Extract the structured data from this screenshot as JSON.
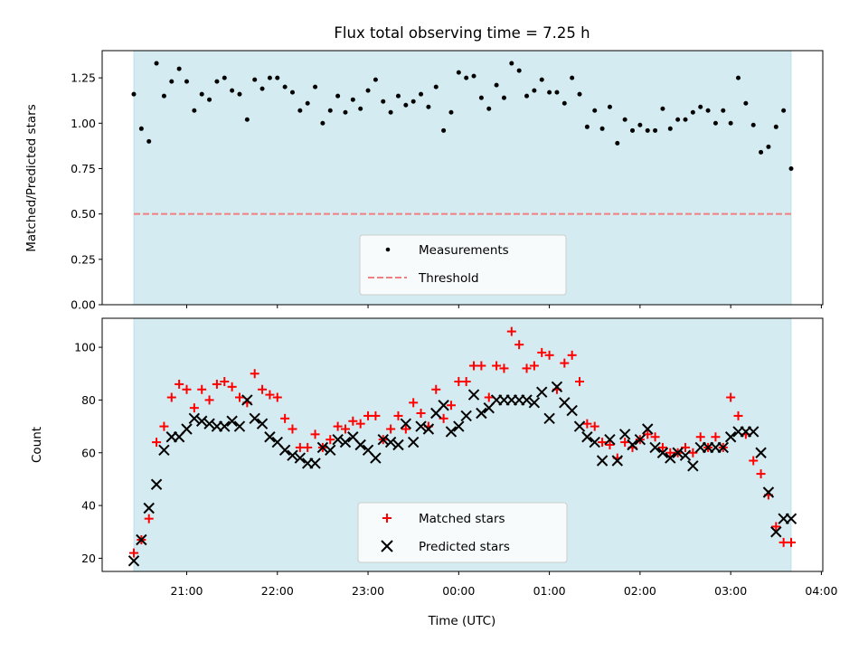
{
  "chart_data": [
    {
      "type": "scatter",
      "title": "Flux total observing time = 7.25 h",
      "xlabel": "",
      "ylabel": "Matched/Predicted stars",
      "ylim": [
        0.0,
        1.4
      ],
      "yticks": [
        "0.00",
        "0.25",
        "0.50",
        "0.75",
        "1.00",
        "1.25"
      ],
      "shaded_color": "#d4ebf1",
      "legend_position": "lower center",
      "series": [
        {
          "name": "Measurements",
          "marker": "dot",
          "color": "#000000",
          "x": [
            "20:25",
            "20:30",
            "20:35",
            "20:40",
            "20:45",
            "20:50",
            "20:55",
            "21:00",
            "21:05",
            "21:10",
            "21:15",
            "21:20",
            "21:25",
            "21:30",
            "21:35",
            "21:40",
            "21:45",
            "21:50",
            "21:55",
            "22:00",
            "22:05",
            "22:10",
            "22:15",
            "22:20",
            "22:25",
            "22:30",
            "22:35",
            "22:40",
            "22:45",
            "22:50",
            "22:55",
            "23:00",
            "23:05",
            "23:10",
            "23:15",
            "23:20",
            "23:25",
            "23:30",
            "23:35",
            "23:40",
            "23:45",
            "23:50",
            "23:55",
            "00:00",
            "00:05",
            "00:10",
            "00:15",
            "00:20",
            "00:25",
            "00:30",
            "00:35",
            "00:40",
            "00:45",
            "00:50",
            "00:55",
            "01:00",
            "01:05",
            "01:10",
            "01:15",
            "01:20",
            "01:25",
            "01:30",
            "01:35",
            "01:40",
            "01:45",
            "01:50",
            "01:55",
            "02:00",
            "02:05",
            "02:10",
            "02:15",
            "02:20",
            "02:25",
            "02:30",
            "02:35",
            "02:40",
            "02:45",
            "02:50",
            "02:55",
            "03:00",
            "03:05",
            "03:10",
            "03:15",
            "03:20",
            "03:25",
            "03:30",
            "03:35",
            "03:40"
          ],
          "y": [
            1.16,
            0.97,
            0.9,
            1.33,
            1.15,
            1.23,
            1.3,
            1.23,
            1.07,
            1.16,
            1.13,
            1.23,
            1.25,
            1.18,
            1.16,
            1.02,
            1.24,
            1.19,
            1.25,
            1.25,
            1.2,
            1.17,
            1.07,
            1.11,
            1.2,
            1.0,
            1.07,
            1.15,
            1.06,
            1.13,
            1.08,
            1.18,
            1.24,
            1.12,
            1.06,
            1.15,
            1.1,
            1.12,
            1.16,
            1.09,
            1.2,
            0.96,
            1.06,
            1.28,
            1.25,
            1.26,
            1.14,
            1.08,
            1.21,
            1.14,
            1.33,
            1.29,
            1.15,
            1.18,
            1.24,
            1.17,
            1.17,
            1.11,
            1.25,
            1.16,
            0.98,
            1.07,
            0.97,
            1.09,
            0.89,
            1.02,
            0.96,
            0.99,
            0.96,
            0.96,
            1.08,
            0.97,
            1.02,
            1.02,
            1.06,
            1.09,
            1.07,
            1.0,
            1.07,
            1.0,
            1.25,
            1.11,
            0.99,
            0.84,
            0.87,
            0.98,
            1.07,
            0.75
          ]
        },
        {
          "name": "Threshold",
          "marker": "dashed-line",
          "color": "#f08080",
          "x": [
            "20:25",
            "03:40"
          ],
          "y": [
            0.5,
            0.5
          ]
        }
      ]
    },
    {
      "type": "scatter",
      "title": "",
      "xlabel": "Time (UTC)",
      "ylabel": "Count",
      "ylim": [
        15,
        111
      ],
      "yticks": [
        "20",
        "40",
        "60",
        "80",
        "100"
      ],
      "xticks": [
        "21:00",
        "22:00",
        "23:00",
        "00:00",
        "01:00",
        "02:00",
        "03:00",
        "04:00"
      ],
      "shaded_color": "#d4ebf1",
      "legend_position": "lower center",
      "series": [
        {
          "name": "Matched stars",
          "marker": "plus",
          "color": "#ff0000",
          "x": [
            "20:25",
            "20:30",
            "20:35",
            "20:40",
            "20:45",
            "20:50",
            "20:55",
            "21:00",
            "21:05",
            "21:10",
            "21:15",
            "21:20",
            "21:25",
            "21:30",
            "21:35",
            "21:40",
            "21:45",
            "21:50",
            "21:55",
            "22:00",
            "22:05",
            "22:10",
            "22:15",
            "22:20",
            "22:25",
            "22:30",
            "22:35",
            "22:40",
            "22:45",
            "22:50",
            "22:55",
            "23:00",
            "23:05",
            "23:10",
            "23:15",
            "23:20",
            "23:25",
            "23:30",
            "23:35",
            "23:40",
            "23:45",
            "23:50",
            "23:55",
            "00:00",
            "00:05",
            "00:10",
            "00:15",
            "00:20",
            "00:25",
            "00:30",
            "00:35",
            "00:40",
            "00:45",
            "00:50",
            "00:55",
            "01:00",
            "01:05",
            "01:10",
            "01:15",
            "01:20",
            "01:25",
            "01:30",
            "01:35",
            "01:40",
            "01:45",
            "01:50",
            "01:55",
            "02:00",
            "02:05",
            "02:10",
            "02:15",
            "02:20",
            "02:25",
            "02:30",
            "02:35",
            "02:40",
            "02:45",
            "02:50",
            "02:55",
            "03:00",
            "03:05",
            "03:10",
            "03:15",
            "03:20",
            "03:25",
            "03:30",
            "03:35",
            "03:40"
          ],
          "y": [
            22,
            27,
            35,
            64,
            70,
            81,
            86,
            84,
            77,
            84,
            80,
            86,
            87,
            85,
            81,
            79,
            90,
            84,
            82,
            81,
            73,
            69,
            62,
            62,
            67,
            62,
            65,
            70,
            69,
            72,
            71,
            74,
            74,
            65,
            69,
            74,
            69,
            79,
            75,
            70,
            84,
            73,
            78,
            87,
            87,
            93,
            93,
            81,
            93,
            92,
            106,
            101,
            92,
            93,
            98,
            97,
            84,
            94,
            97,
            87,
            71,
            70,
            64,
            63,
            58,
            64,
            62,
            65,
            67,
            66,
            62,
            60,
            60,
            62,
            60,
            66,
            62,
            66,
            62,
            81,
            74,
            67,
            57,
            52,
            44,
            32,
            26,
            26
          ]
        },
        {
          "name": "Predicted stars",
          "marker": "x",
          "color": "#000000",
          "x": [
            "20:25",
            "20:30",
            "20:35",
            "20:40",
            "20:45",
            "20:50",
            "20:55",
            "21:00",
            "21:05",
            "21:10",
            "21:15",
            "21:20",
            "21:25",
            "21:30",
            "21:35",
            "21:40",
            "21:45",
            "21:50",
            "21:55",
            "22:00",
            "22:05",
            "22:10",
            "22:15",
            "22:20",
            "22:25",
            "22:30",
            "22:35",
            "22:40",
            "22:45",
            "22:50",
            "22:55",
            "23:00",
            "23:05",
            "23:10",
            "23:15",
            "23:20",
            "23:25",
            "23:30",
            "23:35",
            "23:40",
            "23:45",
            "23:50",
            "23:55",
            "00:00",
            "00:05",
            "00:10",
            "00:15",
            "00:20",
            "00:25",
            "00:30",
            "00:35",
            "00:40",
            "00:45",
            "00:50",
            "00:55",
            "01:00",
            "01:05",
            "01:10",
            "01:15",
            "01:20",
            "01:25",
            "01:30",
            "01:35",
            "01:40",
            "01:45",
            "01:50",
            "01:55",
            "02:00",
            "02:05",
            "02:10",
            "02:15",
            "02:20",
            "02:25",
            "02:30",
            "02:35",
            "02:40",
            "02:45",
            "02:50",
            "02:55",
            "03:00",
            "03:05",
            "03:10",
            "03:15",
            "03:20",
            "03:25",
            "03:30",
            "03:35",
            "03:40"
          ],
          "y": [
            19,
            27,
            39,
            48,
            61,
            66,
            66,
            69,
            73,
            72,
            71,
            70,
            70,
            72,
            70,
            80,
            73,
            71,
            66,
            64,
            61,
            59,
            58,
            56,
            56,
            62,
            61,
            65,
            64,
            66,
            63,
            61,
            58,
            65,
            64,
            63,
            71,
            64,
            70,
            69,
            75,
            78,
            68,
            70,
            74,
            82,
            75,
            77,
            80,
            80,
            80,
            80,
            80,
            79,
            83,
            73,
            85,
            79,
            76,
            70,
            66,
            64,
            57,
            65,
            57,
            67,
            63,
            65,
            69,
            62,
            60,
            58,
            60,
            59,
            55,
            62,
            62,
            62,
            62,
            66,
            68,
            68,
            68,
            60,
            45,
            30,
            35,
            35
          ]
        }
      ]
    }
  ]
}
